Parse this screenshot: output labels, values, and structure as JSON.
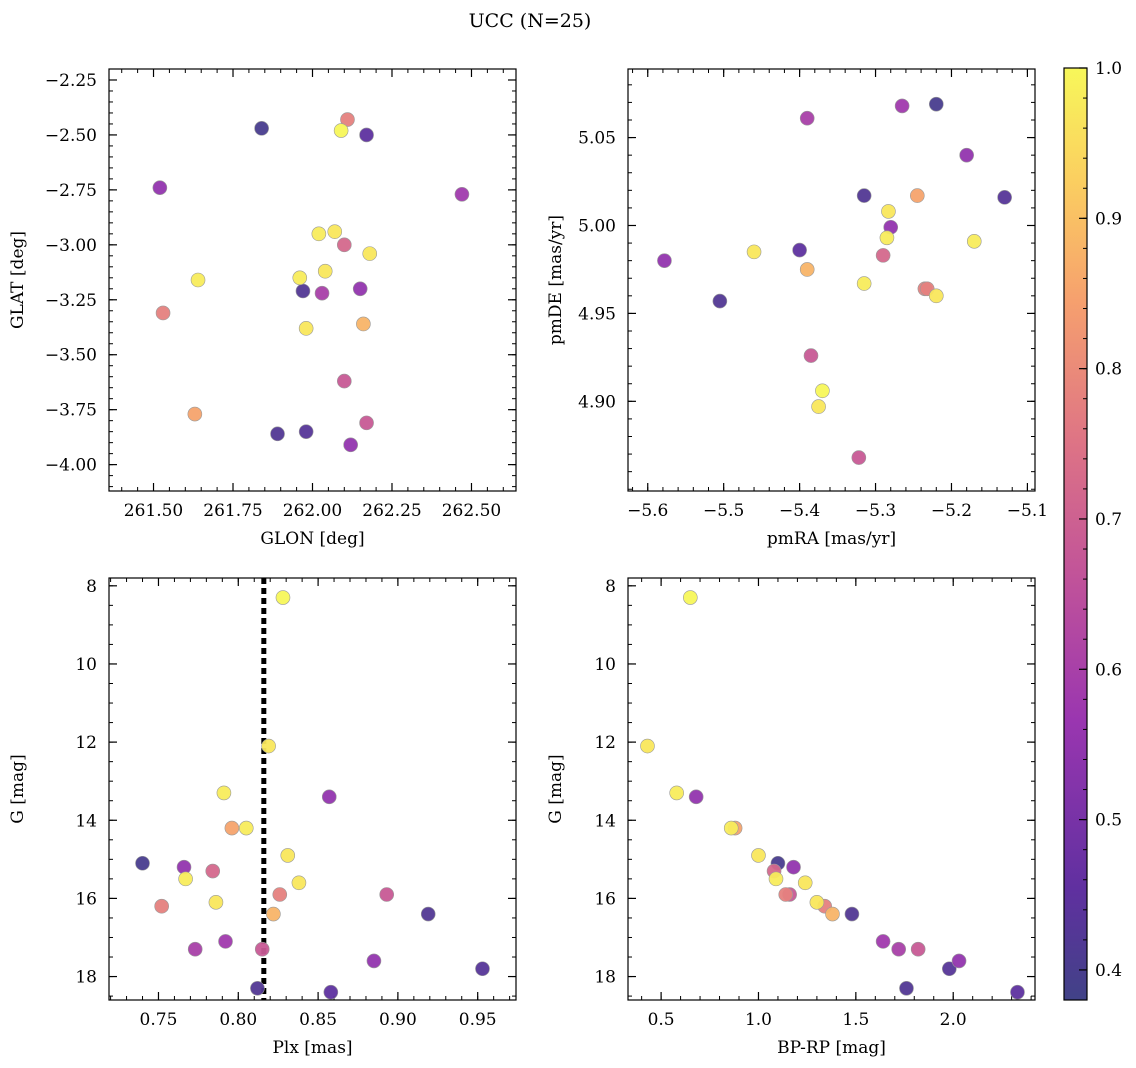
{
  "figure": {
    "title": "UCC (N=25)"
  },
  "colorbar": {
    "colormap": "plasma",
    "range": [
      0.38,
      1.0
    ],
    "ticks": [
      0.4,
      0.5,
      0.6,
      0.7,
      0.8,
      0.9,
      1.0
    ],
    "tick_labels": [
      "0.4",
      "0.5",
      "0.6",
      "0.7",
      "0.8",
      "0.9",
      "1.0"
    ]
  },
  "stars": [
    {
      "glon": 261.52,
      "glat": -2.74,
      "pmra": -5.28,
      "pmde": 4.999,
      "plx": 0.766,
      "g": 15.2,
      "bprp": 1.18,
      "p": 0.55
    },
    {
      "glon": 261.53,
      "glat": -3.31,
      "pmra": -5.235,
      "pmde": 4.964,
      "plx": 0.752,
      "g": 16.2,
      "bprp": 1.34,
      "p": 0.78
    },
    {
      "glon": 261.64,
      "glat": -3.16,
      "pmra": -5.315,
      "pmde": 4.967,
      "plx": 0.767,
      "g": 15.5,
      "bprp": 1.09,
      "p": 0.98
    },
    {
      "glon": 261.63,
      "glat": -3.77,
      "pmra": -5.245,
      "pmde": 5.017,
      "plx": 0.796,
      "g": 14.2,
      "bprp": 0.88,
      "p": 0.85
    },
    {
      "glon": 261.84,
      "glat": -2.47,
      "pmra": -5.22,
      "pmde": 5.069,
      "plx": 0.74,
      "g": 15.1,
      "bprp": 1.1,
      "p": 0.4
    },
    {
      "glon": 261.89,
      "glat": -3.86,
      "pmra": -5.315,
      "pmde": 5.017,
      "plx": 0.812,
      "g": 18.3,
      "bprp": 1.76,
      "p": 0.42
    },
    {
      "glon": 261.96,
      "glat": -3.15,
      "pmra": -5.285,
      "pmde": 4.993,
      "plx": 0.791,
      "g": 13.3,
      "bprp": 0.58,
      "p": 0.98
    },
    {
      "glon": 261.97,
      "glat": -3.21,
      "pmra": -5.505,
      "pmde": 4.957,
      "plx": 0.919,
      "g": 16.4,
      "bprp": 1.48,
      "p": 0.42
    },
    {
      "glon": 261.98,
      "glat": -3.38,
      "pmra": -5.46,
      "pmde": 4.985,
      "plx": 0.786,
      "g": 16.1,
      "bprp": 1.3,
      "p": 0.97
    },
    {
      "glon": 261.98,
      "glat": -3.85,
      "pmra": -5.13,
      "pmde": 5.016,
      "plx": 0.953,
      "g": 17.8,
      "bprp": 1.98,
      "p": 0.43
    },
    {
      "glon": 262.02,
      "glat": -2.95,
      "pmra": -5.17,
      "pmde": 4.991,
      "plx": 0.805,
      "g": 14.2,
      "bprp": 0.86,
      "p": 0.98
    },
    {
      "glon": 262.03,
      "glat": -3.22,
      "pmra": -5.39,
      "pmde": 5.061,
      "plx": 0.773,
      "g": 17.3,
      "bprp": 1.72,
      "p": 0.6
    },
    {
      "glon": 262.04,
      "glat": -3.12,
      "pmra": -5.375,
      "pmde": 4.897,
      "plx": 0.831,
      "g": 14.9,
      "bprp": 1.0,
      "p": 0.97
    },
    {
      "glon": 262.07,
      "glat": -2.94,
      "pmra": -5.22,
      "pmde": 4.96,
      "plx": 0.838,
      "g": 15.6,
      "bprp": 1.24,
      "p": 0.97
    },
    {
      "glon": 262.09,
      "glat": -2.48,
      "pmra": -5.37,
      "pmde": 4.906,
      "plx": 0.828,
      "g": 8.3,
      "bprp": 0.65,
      "p": 1.0
    },
    {
      "glon": 262.1,
      "glat": -3.0,
      "pmra": -5.29,
      "pmde": 4.983,
      "plx": 0.784,
      "g": 15.3,
      "bprp": 1.08,
      "p": 0.72
    },
    {
      "glon": 262.1,
      "glat": -3.62,
      "pmra": -5.385,
      "pmde": 4.926,
      "plx": 0.815,
      "g": 17.3,
      "bprp": 1.82,
      "p": 0.68
    },
    {
      "glon": 262.11,
      "glat": -2.43,
      "pmra": -5.232,
      "pmde": 4.964,
      "plx": 0.826,
      "g": 15.9,
      "bprp": 1.14,
      "p": 0.78
    },
    {
      "glon": 262.12,
      "glat": -3.91,
      "pmra": -5.18,
      "pmde": 5.04,
      "plx": 0.885,
      "g": 17.6,
      "bprp": 2.03,
      "p": 0.55
    },
    {
      "glon": 262.15,
      "glat": -3.2,
      "pmra": -5.578,
      "pmde": 4.98,
      "plx": 0.857,
      "g": 13.4,
      "bprp": 0.68,
      "p": 0.55
    },
    {
      "glon": 262.17,
      "glat": -3.81,
      "pmra": -5.322,
      "pmde": 4.868,
      "plx": 0.893,
      "g": 15.9,
      "bprp": 1.16,
      "p": 0.68
    },
    {
      "glon": 262.17,
      "glat": -2.5,
      "pmra": -5.4,
      "pmde": 4.986,
      "plx": 0.858,
      "g": 18.4,
      "bprp": 2.33,
      "p": 0.45
    },
    {
      "glon": 262.18,
      "glat": -3.04,
      "pmra": -5.283,
      "pmde": 5.008,
      "plx": 0.819,
      "g": 12.1,
      "bprp": 0.43,
      "p": 0.97
    },
    {
      "glon": 262.47,
      "glat": -2.77,
      "pmra": -5.265,
      "pmde": 5.068,
      "plx": 0.792,
      "g": 17.1,
      "bprp": 1.64,
      "p": 0.58
    },
    {
      "glon": 262.16,
      "glat": -3.36,
      "pmra": -5.39,
      "pmde": 4.975,
      "plx": 0.822,
      "g": 16.4,
      "bprp": 1.38,
      "p": 0.88
    }
  ],
  "chart_data": [
    {
      "type": "scatter",
      "x_field": "glon",
      "y_field": "glat",
      "xlabel": "GLON [deg]",
      "ylabel": "GLAT [deg]",
      "xlim": [
        261.36,
        262.64
      ],
      "ylim": [
        -4.12,
        -2.2
      ],
      "y_inverted": false,
      "xticks": [
        261.5,
        261.75,
        262.0,
        262.25,
        262.5
      ],
      "xtick_labels": [
        "261.50",
        "261.75",
        "262.00",
        "262.25",
        "262.50"
      ],
      "yticks": [
        -2.25,
        -2.5,
        -2.75,
        -3.0,
        -3.25,
        -3.5,
        -3.75,
        -4.0
      ],
      "ytick_labels": [
        "−2.25",
        "−2.50",
        "−2.75",
        "−3.00",
        "−3.25",
        "−3.50",
        "−3.75",
        "−4.00"
      ],
      "minor_x": 0.05,
      "minor_y": 0.05
    },
    {
      "type": "scatter",
      "x_field": "pmra",
      "y_field": "pmde",
      "xlabel": "pmRA [mas/yr]",
      "ylabel": "pmDE [mas/yr]",
      "xlim": [
        -5.626,
        -5.09
      ],
      "ylim": [
        4.849,
        5.089
      ],
      "y_inverted": false,
      "xticks": [
        -5.6,
        -5.5,
        -5.4,
        -5.3,
        -5.2,
        -5.1
      ],
      "xtick_labels": [
        "−5.6",
        "−5.5",
        "−5.4",
        "−5.3",
        "−5.2",
        "−5.1"
      ],
      "yticks": [
        4.9,
        4.95,
        5.0,
        5.05
      ],
      "ytick_labels": [
        "4.90",
        "4.95",
        "5.00",
        "5.05"
      ],
      "minor_x": 0.02,
      "minor_y": 0.01
    },
    {
      "type": "scatter",
      "x_field": "plx",
      "y_field": "g",
      "xlabel": "Plx [mas]",
      "ylabel": "G [mag]",
      "xlim": [
        0.719,
        0.974
      ],
      "ylim": [
        7.8,
        18.6
      ],
      "y_inverted": true,
      "xticks": [
        0.75,
        0.8,
        0.85,
        0.9,
        0.95
      ],
      "xtick_labels": [
        "0.75",
        "0.80",
        "0.85",
        "0.90",
        "0.95"
      ],
      "yticks": [
        8,
        10,
        12,
        14,
        16,
        18
      ],
      "ytick_labels": [
        "8",
        "10",
        "12",
        "14",
        "16",
        "18"
      ],
      "minor_x": 0.01,
      "minor_y": 0.5,
      "vline": 0.816
    },
    {
      "type": "scatter",
      "x_field": "bprp",
      "y_field": "g",
      "xlabel": "BP-RP [mag]",
      "ylabel": "G [mag]",
      "xlim": [
        0.33,
        2.42
      ],
      "ylim": [
        7.8,
        18.6
      ],
      "y_inverted": true,
      "xticks": [
        0.5,
        1.0,
        1.5,
        2.0
      ],
      "xtick_labels": [
        "0.5",
        "1.0",
        "1.5",
        "2.0"
      ],
      "yticks": [
        8,
        10,
        12,
        14,
        16,
        18
      ],
      "ytick_labels": [
        "8",
        "10",
        "12",
        "14",
        "16",
        "18"
      ],
      "minor_x": 0.1,
      "minor_y": 0.5
    }
  ]
}
